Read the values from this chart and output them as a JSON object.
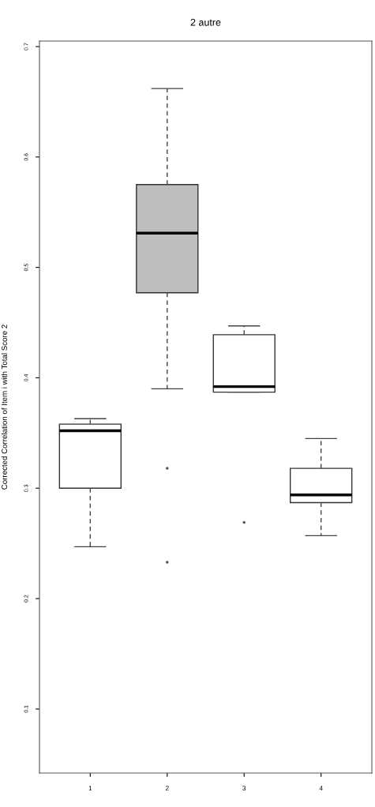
{
  "chart_data": {
    "type": "box",
    "title": "2 autre",
    "ylabel": "Corrected Correlation of Item i with Total Score 2",
    "categories": [
      "1",
      "2",
      "3",
      "4"
    ],
    "boxes": [
      {
        "low": 0.247,
        "q1": 0.3,
        "median": 0.352,
        "q3": 0.358,
        "high": 0.363
      },
      {
        "low": 0.39,
        "q1": 0.477,
        "median": 0.531,
        "q3": 0.575,
        "high": 0.662,
        "outliers": [
          0.318,
          0.233
        ]
      },
      {
        "low": 0.387,
        "q1": 0.387,
        "median": 0.392,
        "q3": 0.439,
        "high": 0.447,
        "outliers": [
          0.269
        ]
      },
      {
        "low": 0.257,
        "q1": 0.287,
        "median": 0.294,
        "q3": 0.318,
        "high": 0.345
      }
    ],
    "colors": [
      "#ffffff",
      "#bebebe",
      "#ffffff",
      "#ffffff"
    ],
    "ylim": [
      0.042,
      0.705
    ],
    "yticks": [
      0.1,
      0.2,
      0.3,
      0.4,
      0.5,
      0.6,
      0.7
    ],
    "grid": false,
    "line_style": "dashed"
  }
}
